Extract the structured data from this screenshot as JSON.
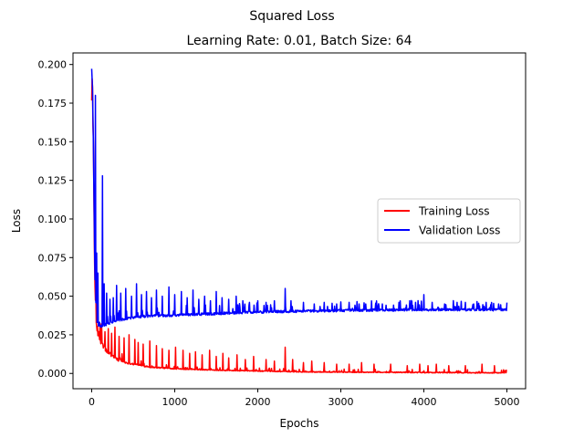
{
  "chart_data": {
    "type": "line",
    "suptitle": "Squared Loss",
    "title": "Learning Rate: 0.01, Batch Size: 64",
    "xlabel": "Epochs",
    "ylabel": "Loss",
    "xlim": [
      -225,
      5225
    ],
    "ylim": [
      -0.0099,
      0.2075
    ],
    "xticks": [
      0,
      1000,
      2000,
      3000,
      4000,
      5000
    ],
    "xtick_labels": [
      "0",
      "1000",
      "2000",
      "3000",
      "4000",
      "5000"
    ],
    "yticks": [
      0.0,
      0.025,
      0.05,
      0.075,
      0.1,
      0.125,
      0.15,
      0.175,
      0.2
    ],
    "ytick_labels": [
      "0.000",
      "0.025",
      "0.050",
      "0.075",
      "0.100",
      "0.125",
      "0.150",
      "0.175",
      "0.200"
    ],
    "grid": false,
    "legend_position": "center-right",
    "epochs": 5000,
    "series": [
      {
        "name": "Training Loss",
        "color": "#ff0000",
        "x": [
          0,
          10,
          20,
          30,
          40,
          50,
          60,
          80,
          100,
          150,
          200,
          300,
          400,
          500,
          700,
          1000,
          1500,
          2000,
          2500,
          3000,
          4000,
          5000
        ],
        "values": [
          0.19,
          0.17,
          0.14,
          0.09,
          0.05,
          0.034,
          0.03,
          0.025,
          0.021,
          0.016,
          0.013,
          0.009,
          0.007,
          0.006,
          0.004,
          0.003,
          0.002,
          0.0015,
          0.001,
          0.0008,
          0.0005,
          0.0003
        ],
        "spikes": [
          [
            120,
            0.031
          ],
          [
            160,
            0.027
          ],
          [
            200,
            0.029
          ],
          [
            240,
            0.026
          ],
          [
            280,
            0.03
          ],
          [
            330,
            0.024
          ],
          [
            390,
            0.023
          ],
          [
            450,
            0.025
          ],
          [
            520,
            0.022
          ],
          [
            560,
            0.02
          ],
          [
            620,
            0.019
          ],
          [
            700,
            0.021
          ],
          [
            780,
            0.018
          ],
          [
            850,
            0.016
          ],
          [
            930,
            0.015
          ],
          [
            1010,
            0.017
          ],
          [
            1100,
            0.015
          ],
          [
            1180,
            0.013
          ],
          [
            1250,
            0.014
          ],
          [
            1330,
            0.012
          ],
          [
            1420,
            0.015
          ],
          [
            1500,
            0.011
          ],
          [
            1580,
            0.013
          ],
          [
            1650,
            0.01
          ],
          [
            1750,
            0.012
          ],
          [
            1850,
            0.009
          ],
          [
            1950,
            0.011
          ],
          [
            2100,
            0.009
          ],
          [
            2200,
            0.008
          ],
          [
            2330,
            0.017
          ],
          [
            2420,
            0.009
          ],
          [
            2550,
            0.007
          ],
          [
            2650,
            0.008
          ],
          [
            2800,
            0.007
          ],
          [
            2950,
            0.006
          ],
          [
            3100,
            0.006
          ],
          [
            3250,
            0.007
          ],
          [
            3400,
            0.006
          ],
          [
            3600,
            0.006
          ],
          [
            3800,
            0.005
          ],
          [
            3950,
            0.006
          ],
          [
            4050,
            0.005
          ],
          [
            4150,
            0.006
          ],
          [
            4300,
            0.005
          ],
          [
            4500,
            0.005
          ],
          [
            4700,
            0.006
          ],
          [
            4850,
            0.005
          ]
        ]
      },
      {
        "name": "Validation Loss",
        "color": "#0000ff",
        "x": [
          0,
          10,
          20,
          30,
          40,
          50,
          60,
          80,
          100,
          150,
          200,
          300,
          400,
          500,
          700,
          1000,
          1500,
          2000,
          2500,
          3000,
          4000,
          5000
        ],
        "values": [
          0.197,
          0.185,
          0.15,
          0.1,
          0.06,
          0.045,
          0.034,
          0.031,
          0.03,
          0.031,
          0.032,
          0.034,
          0.035,
          0.036,
          0.037,
          0.0375,
          0.0385,
          0.0395,
          0.04,
          0.0405,
          0.041,
          0.041
        ],
        "spikes": [
          [
            45,
            0.18
          ],
          [
            60,
            0.078
          ],
          [
            75,
            0.065
          ],
          [
            130,
            0.128
          ],
          [
            150,
            0.058
          ],
          [
            180,
            0.052
          ],
          [
            220,
            0.048
          ],
          [
            260,
            0.049
          ],
          [
            300,
            0.057
          ],
          [
            350,
            0.052
          ],
          [
            410,
            0.055
          ],
          [
            480,
            0.05
          ],
          [
            540,
            0.058
          ],
          [
            600,
            0.051
          ],
          [
            660,
            0.053
          ],
          [
            720,
            0.049
          ],
          [
            780,
            0.054
          ],
          [
            850,
            0.05
          ],
          [
            930,
            0.056
          ],
          [
            1000,
            0.051
          ],
          [
            1080,
            0.053
          ],
          [
            1150,
            0.049
          ],
          [
            1220,
            0.054
          ],
          [
            1290,
            0.048
          ],
          [
            1360,
            0.05
          ],
          [
            1430,
            0.047
          ],
          [
            1500,
            0.053
          ],
          [
            1570,
            0.049
          ],
          [
            1650,
            0.048
          ],
          [
            1740,
            0.05
          ],
          [
            1820,
            0.047
          ],
          [
            1900,
            0.046
          ],
          [
            2000,
            0.047
          ],
          [
            2100,
            0.046
          ],
          [
            2200,
            0.047
          ],
          [
            2330,
            0.055
          ],
          [
            2400,
            0.047
          ],
          [
            2550,
            0.046
          ],
          [
            2680,
            0.045
          ],
          [
            2800,
            0.046
          ],
          [
            2950,
            0.045
          ],
          [
            3100,
            0.046
          ],
          [
            3300,
            0.045
          ],
          [
            3500,
            0.045
          ],
          [
            3700,
            0.046
          ],
          [
            3900,
            0.046
          ],
          [
            4000,
            0.051
          ],
          [
            4100,
            0.046
          ],
          [
            4250,
            0.045
          ],
          [
            4400,
            0.046
          ],
          [
            4500,
            0.046
          ],
          [
            4600,
            0.045
          ],
          [
            4750,
            0.046
          ],
          [
            4900,
            0.045
          ]
        ]
      }
    ]
  }
}
